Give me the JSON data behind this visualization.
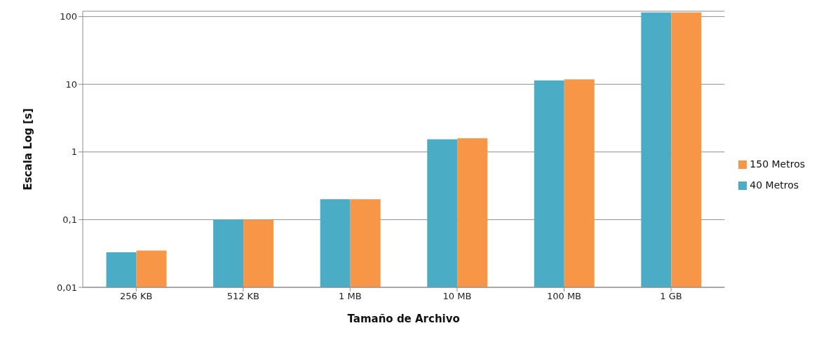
{
  "chart_data": {
    "type": "bar",
    "xlabel": "Tamaño de Archivo",
    "ylabel": "Escala Log [s]",
    "categories": [
      "256 KB",
      "512 KB",
      "1 MB",
      "10 MB",
      "100 MB",
      "1 GB"
    ],
    "series": [
      {
        "name": "40 Metros",
        "color": "#4bacc6",
        "values": [
          0.033,
          0.1,
          0.2,
          1.54,
          11.4,
          115
        ]
      },
      {
        "name": "150 Metros",
        "color": "#f79646",
        "values": [
          0.035,
          0.1,
          0.2,
          1.59,
          11.8,
          115
        ]
      }
    ],
    "log": "y",
    "ylim": [
      0.01,
      120
    ],
    "yticks": [
      {
        "value": 0.01,
        "label": "0,01"
      },
      {
        "value": 0.1,
        "label": "0,1"
      },
      1,
      10,
      100
    ],
    "grid": "y",
    "legend": "right"
  }
}
